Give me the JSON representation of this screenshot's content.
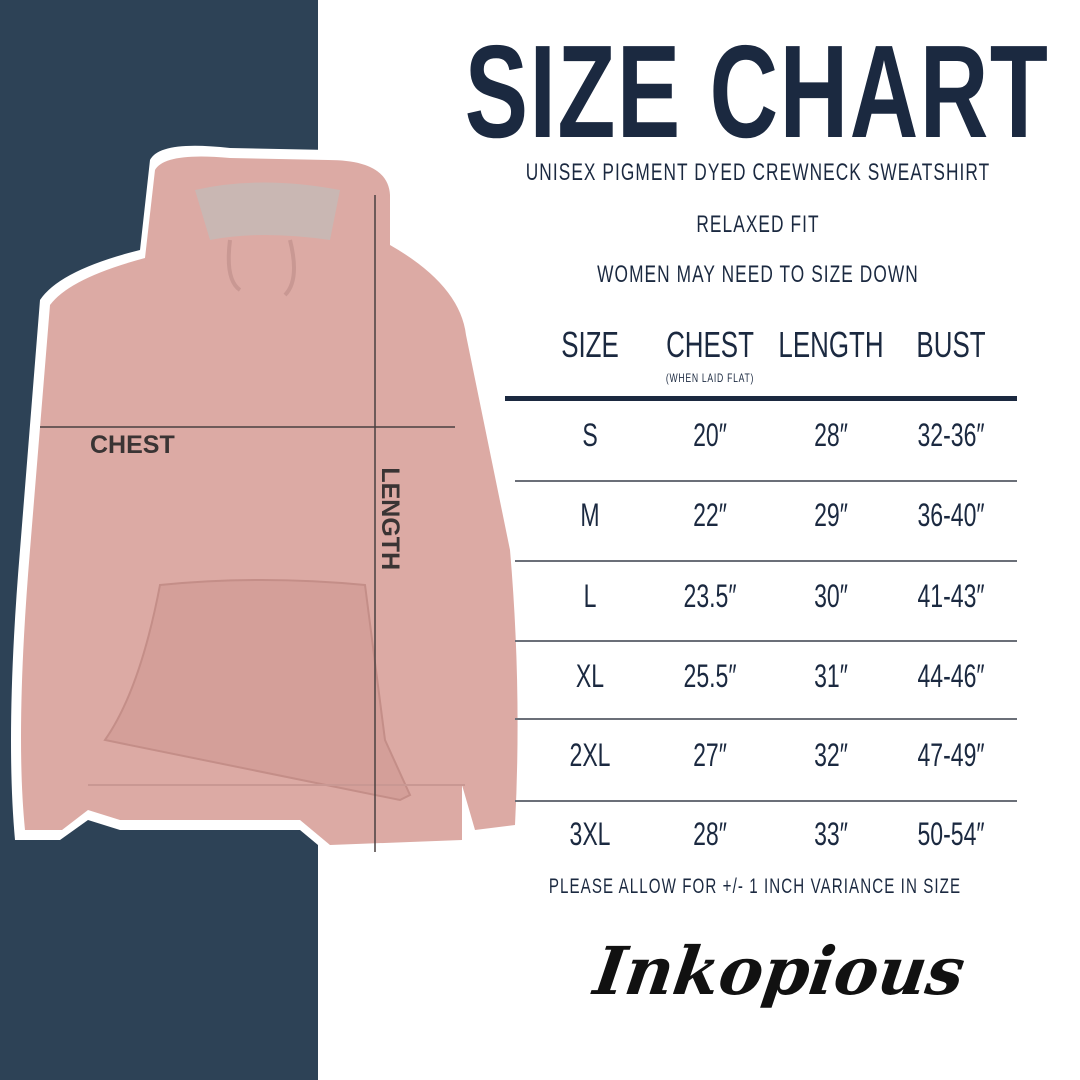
{
  "title": "SIZE CHART",
  "subtitle": "UNISEX PIGMENT DYED CREWNECK SWEATSHIRT",
  "fit": "RELAXED FIT",
  "advice": "WOMEN MAY NEED TO SIZE DOWN",
  "garment_labels": {
    "chest": "CHEST",
    "length": "LENGTH"
  },
  "table": {
    "headers": [
      "SIZE",
      "CHEST",
      "LENGTH",
      "BUST"
    ],
    "chest_note": "(WHEN LAID FLAT)",
    "rows": [
      [
        "S",
        "20″",
        "28″",
        "32-36″"
      ],
      [
        "M",
        "22″",
        "29″",
        "36-40″"
      ],
      [
        "L",
        "23.5″",
        "30″",
        "41-43″"
      ],
      [
        "XL",
        "25.5″",
        "31″",
        "44-46″"
      ],
      [
        "2XL",
        "27″",
        "32″",
        "47-49″"
      ],
      [
        "3XL",
        "28″",
        "33″",
        "50-54″"
      ]
    ]
  },
  "footnote": "PLEASE ALLOW FOR +/- 1 INCH VARIANCE IN SIZE",
  "brand": "Inkopious",
  "colors": {
    "navy_band": "#2d4256",
    "text": "#1b2940",
    "garment": "#dcaaa4"
  }
}
